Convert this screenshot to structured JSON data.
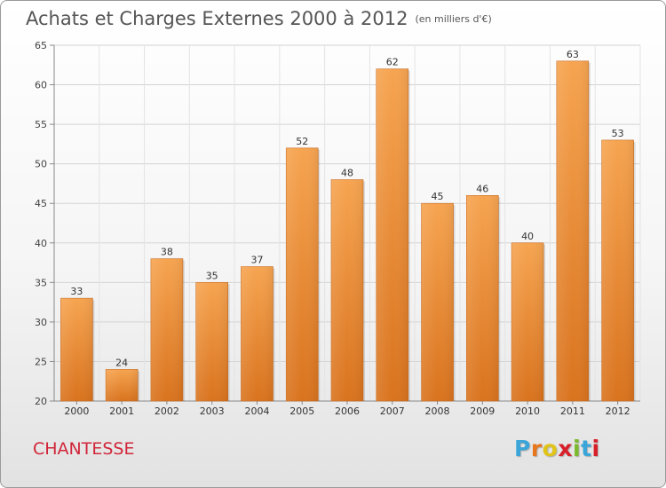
{
  "header": {
    "title": "Achats et Charges Externes 2000 à 2012",
    "subtitle": "(en milliers d'€)"
  },
  "footer": {
    "commune": "CHANTESSE",
    "logo_letters": [
      "P",
      "r",
      "o",
      "x",
      "i",
      "t",
      "i"
    ],
    "logo_colors": [
      "#3aa5d8",
      "#e8761c",
      "#e0c41a",
      "#d81f2a",
      "#7ab92b",
      "#3aa5d8",
      "#d81f2a"
    ]
  },
  "chart_data": {
    "type": "bar",
    "categories": [
      "2000",
      "2001",
      "2002",
      "2003",
      "2004",
      "2005",
      "2006",
      "2007",
      "2008",
      "2009",
      "2010",
      "2011",
      "2012"
    ],
    "values": [
      33,
      24,
      38,
      35,
      37,
      52,
      48,
      62,
      45,
      46,
      40,
      63,
      53
    ],
    "ylim": [
      20,
      65
    ],
    "yticks": [
      20,
      25,
      30,
      35,
      40,
      45,
      50,
      55,
      60,
      65
    ],
    "grid": true,
    "bar_color_light": "#f6a450",
    "bar_color_dark": "#d9731e"
  }
}
